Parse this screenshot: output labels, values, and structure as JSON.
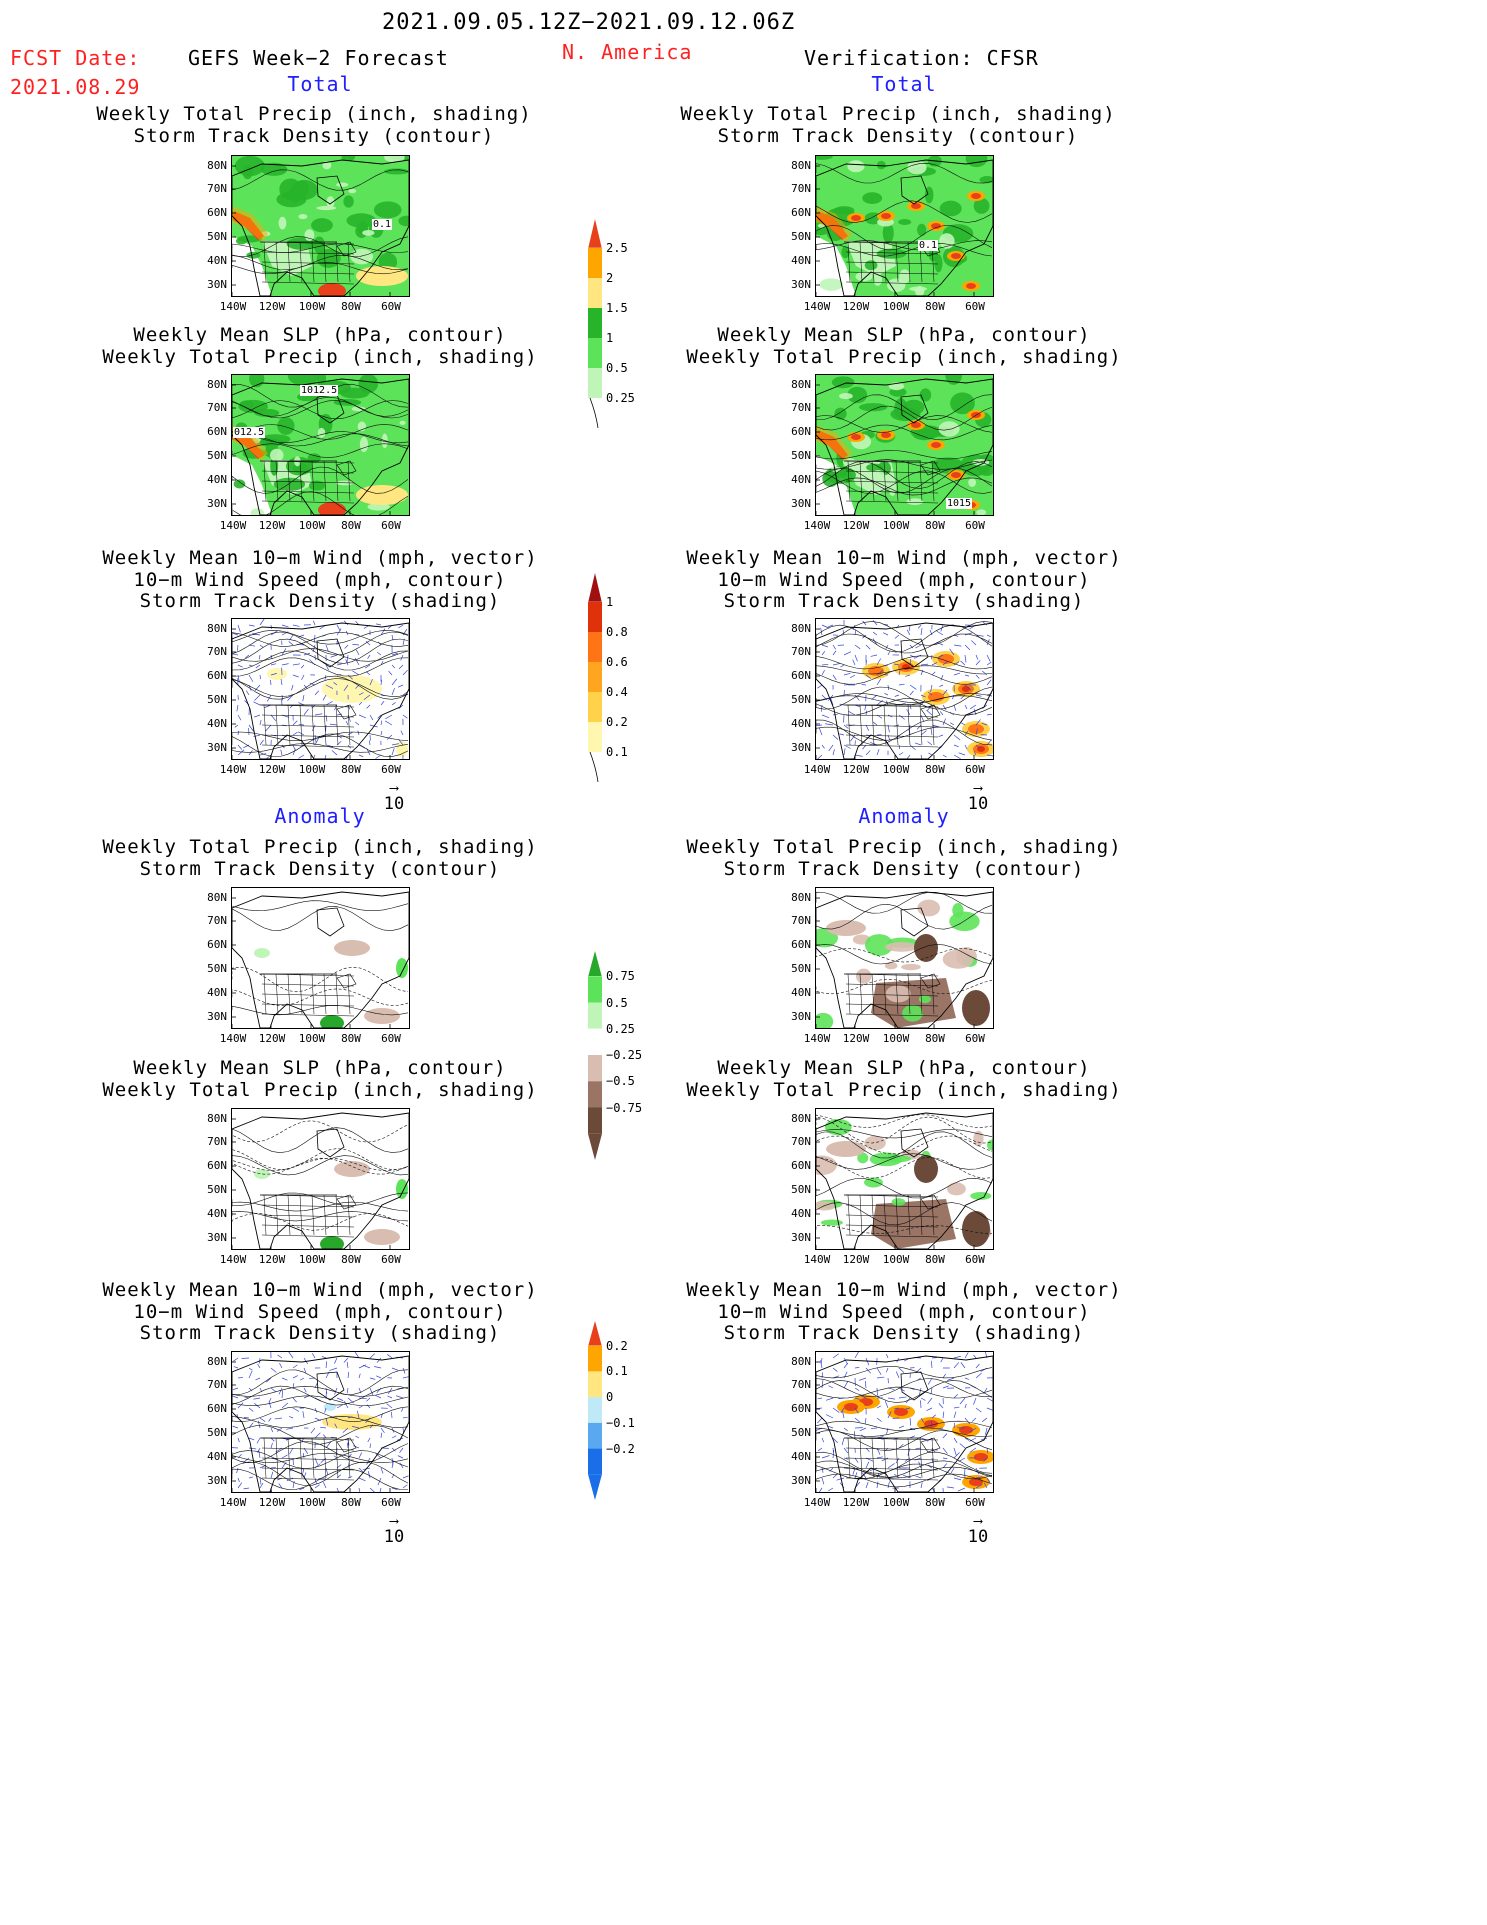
{
  "header": {
    "date_range": "2021.09.05.12Z−2021.09.12.06Z",
    "fcst_label": "FCST Date:",
    "fcst_date": "2021.08.29",
    "left_title": "GEFS Week−2 Forecast",
    "region": "N. America",
    "right_title": "Verification: CFSR"
  },
  "sections": {
    "total": "Total",
    "anomaly": "Anomaly"
  },
  "panel_titles": {
    "precip_track": [
      "Weekly Total Precip (inch, shading)",
      "Storm Track Density (contour)"
    ],
    "slp_precip": [
      "Weekly Mean SLP (hPa, contour)",
      "Weekly Total Precip (inch, shading)"
    ],
    "wind_track": [
      "Weekly Mean 10−m Wind (mph, vector)",
      "10−m Wind Speed (mph, contour)",
      "Storm Track Density (shading)"
    ]
  },
  "axes": {
    "lat": [
      "80N",
      "70N",
      "60N",
      "50N",
      "40N",
      "30N"
    ],
    "lon": [
      "140W",
      "120W",
      "100W",
      "80W",
      "60W"
    ]
  },
  "map_labels": {
    "gefs_precip_total": "0.1",
    "cfsr_precip_total": "0.1",
    "gefs_slp_total_a": "1012.5",
    "gefs_slp_total_b": "012.5",
    "cfsr_slp_total": "1015"
  },
  "vector_ref": "10",
  "colorbars": {
    "precip_total": [
      "2.5",
      "2",
      "1.5",
      "1",
      "0.5",
      "0.25"
    ],
    "track_total": [
      "1",
      "0.8",
      "0.6",
      "0.4",
      "0.2",
      "0.1"
    ],
    "precip_anom": [
      "0.75",
      "0.5",
      "0.25",
      "−0.25",
      "−0.5",
      "−0.75"
    ],
    "track_anom": [
      "0.2",
      "0.1",
      "0",
      "−0.1",
      "−0.2"
    ]
  },
  "colors": {
    "header_red": "#ff2020",
    "section_blue": "#2020ff",
    "precip_scale": [
      "#c0f5b8",
      "#5de35a",
      "#27b42a",
      "#ffe680",
      "#ffa500",
      "#e8401b"
    ],
    "track_scale": [
      "#fff7b0",
      "#ffd24a",
      "#ffa51f",
      "#ff7414",
      "#e0320a",
      "#a01010"
    ],
    "precip_anom_scale": [
      "#6b4a3a",
      "#9a7565",
      "#d9bdb0",
      "#ffffff",
      "#c0f5b8",
      "#5de35a",
      "#27a82a"
    ],
    "track_anom_scale": [
      "#1a6fe8",
      "#59a8f0",
      "#bfe9f7",
      "#ffe680",
      "#ffa500",
      "#e8401b"
    ]
  }
}
